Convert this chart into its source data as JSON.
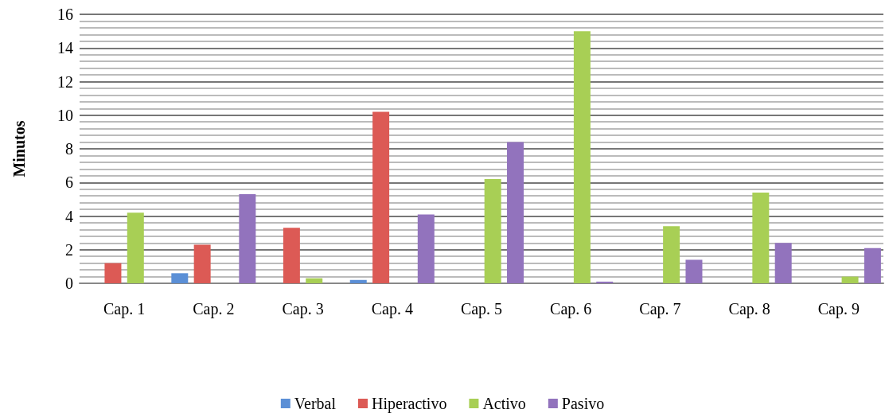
{
  "chart_data": {
    "type": "bar",
    "ylabel": "Minutos",
    "categories": [
      "Cap. 1",
      "Cap. 2",
      "Cap. 3",
      "Cap. 4",
      "Cap. 5",
      "Cap. 6",
      "Cap. 7",
      "Cap. 8",
      "Cap. 9"
    ],
    "series": [
      {
        "name": "Verbal",
        "color": "#5b8fd6",
        "values": [
          0,
          0.6,
          0,
          0.2,
          0,
          0,
          0,
          0,
          0
        ]
      },
      {
        "name": "Hiperactivo",
        "color": "#dc5a55",
        "values": [
          1.2,
          2.3,
          3.3,
          10.2,
          0,
          0,
          0,
          0,
          0
        ]
      },
      {
        "name": "Activo",
        "color": "#a8cf55",
        "values": [
          4.2,
          0,
          0.3,
          0,
          6.2,
          15.0,
          3.4,
          5.4,
          0.4
        ]
      },
      {
        "name": "Pasivo",
        "color": "#9273bd",
        "values": [
          0,
          5.3,
          0,
          4.1,
          8.4,
          0.1,
          1.4,
          2.4,
          2.1
        ]
      }
    ],
    "ylim": [
      0,
      16
    ],
    "yticks": [
      0,
      2,
      4,
      6,
      8,
      10,
      12,
      14,
      16
    ],
    "grid": true,
    "legend": "bottom"
  }
}
